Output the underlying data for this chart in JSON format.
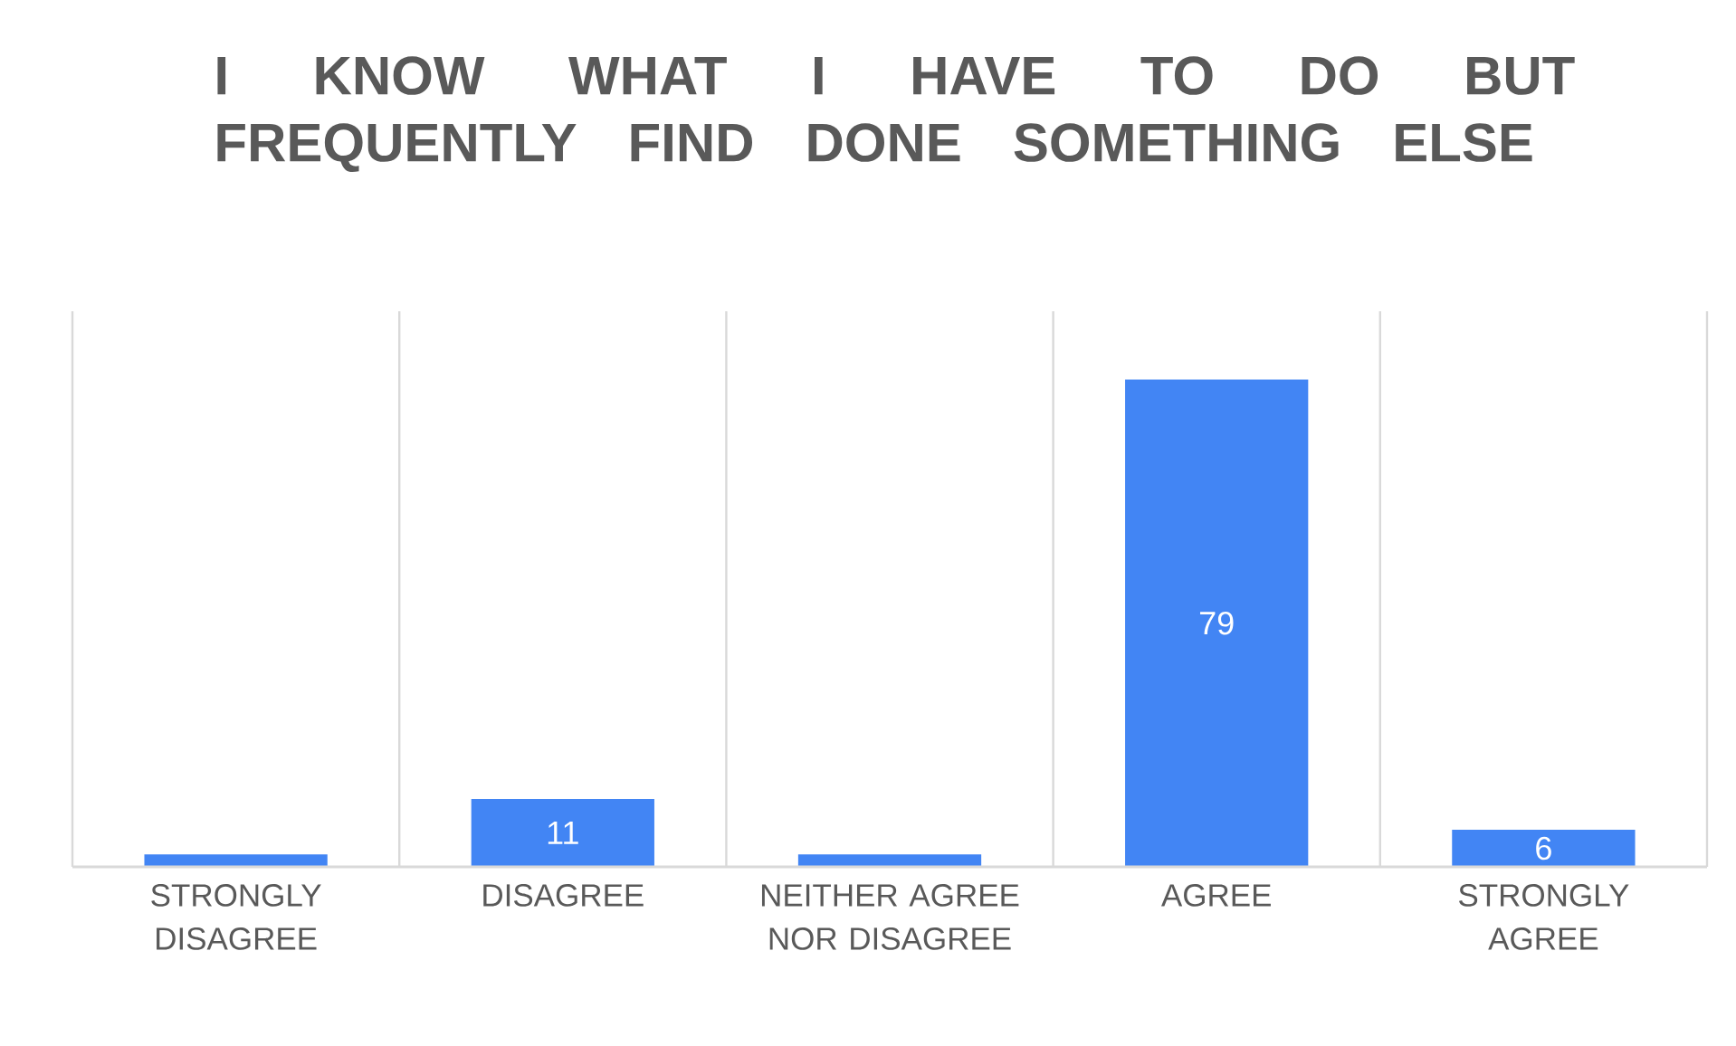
{
  "chart_data": {
    "type": "bar",
    "title": "I KNOW WHAT I HAVE TO DO BUT FREQUENTLY FIND DONE SOMETHING ELSE",
    "categories": [
      "STRONGLY DISAGREE",
      "DISAGREE",
      "NEITHER AGREE NOR DISAGREE",
      "AGREE",
      "STRONGLY AGREE"
    ],
    "values": [
      2,
      11,
      2,
      79,
      6
    ],
    "value_labels": [
      null,
      "11",
      null,
      "79",
      "6"
    ],
    "color": "#4285f4",
    "grid": "x"
  }
}
